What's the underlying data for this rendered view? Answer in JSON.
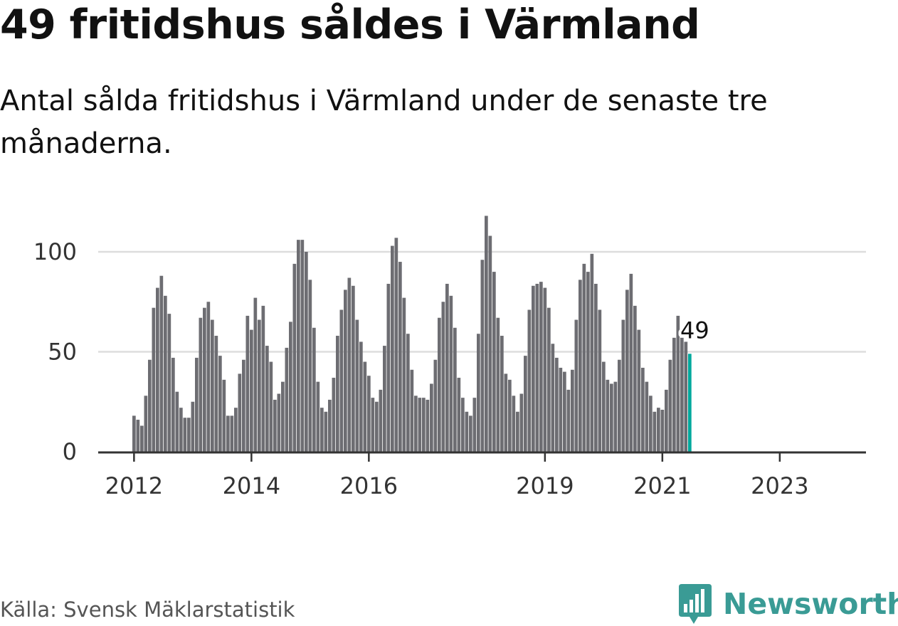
{
  "header": {
    "title": "49 fritidshus såldes i Värmland",
    "subtitle": "Antal sålda fritidshus i Värmland under de senaste tre månaderna."
  },
  "footer": {
    "source": "Källa: Svensk Mäklarstatistik",
    "brand_name": "Newsworthy",
    "brand_icon": "bar-chart-speech-bubble-icon"
  },
  "colors": {
    "bar": "#6d6d72",
    "highlight": "#00a99d",
    "gridline": "#dddddd",
    "axis": "#333333",
    "brand": "#3a9b95"
  },
  "chart_data": {
    "type": "bar",
    "title": "",
    "xlabel": "",
    "ylabel": "",
    "ylim": [
      0,
      120
    ],
    "y_ticks": [
      0,
      50,
      100
    ],
    "x_tick_labels": [
      {
        "label": "2012",
        "index": 0
      },
      {
        "label": "2014",
        "index": 30
      },
      {
        "label": "2016",
        "index": 60
      },
      {
        "label": "2019",
        "index": 105
      },
      {
        "label": "2021",
        "index": 135
      },
      {
        "label": "2023",
        "index": 165
      }
    ],
    "grid": true,
    "legend": "none",
    "series": [
      {
        "values": [
          18,
          16,
          13,
          28,
          46,
          72,
          82,
          88,
          78,
          69,
          47,
          30,
          22,
          17,
          17,
          25,
          47,
          67,
          72,
          75,
          66,
          58,
          48,
          36,
          18,
          18,
          22,
          39,
          46,
          68,
          61,
          77,
          66,
          73,
          53,
          45,
          26,
          29,
          35,
          52,
          65,
          94,
          106,
          106,
          100,
          86,
          62,
          35,
          22,
          20,
          26,
          37,
          58,
          71,
          81,
          87,
          83,
          66,
          55,
          45,
          38,
          27,
          25,
          31,
          53,
          84,
          103,
          107,
          95,
          77,
          59,
          41,
          28,
          27,
          27,
          26,
          34,
          46,
          67,
          75,
          84,
          78,
          62,
          37,
          27,
          20,
          18,
          27,
          59,
          96,
          118,
          108,
          90,
          67,
          58,
          39,
          36,
          28,
          20,
          29,
          48,
          71,
          83,
          84,
          85,
          82,
          72,
          54,
          47,
          42,
          40,
          31,
          41,
          66,
          86,
          94,
          90,
          99,
          84,
          71,
          45,
          36,
          34,
          35,
          46,
          66,
          81,
          89,
          73,
          61,
          42,
          35,
          28,
          20,
          22,
          21,
          31,
          46,
          57,
          68,
          57,
          55,
          49
        ]
      }
    ],
    "highlight_index": 142,
    "highlight_label": "49"
  }
}
